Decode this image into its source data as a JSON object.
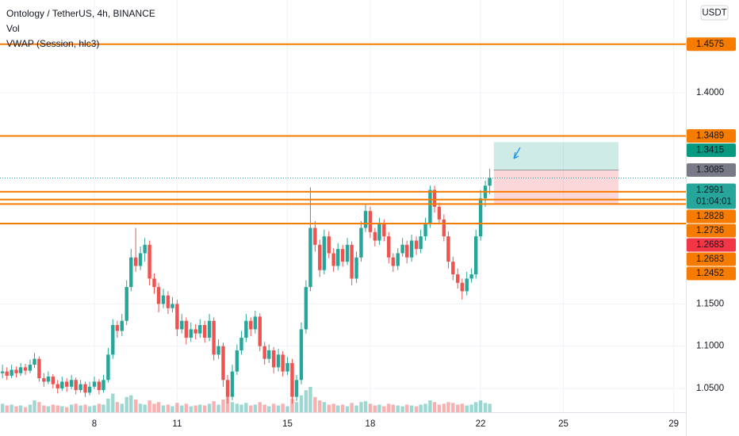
{
  "chart_data": {
    "type": "candlestick",
    "title": "Ontology / TetherUS, 4h, BINANCE",
    "indicators": [
      "Vol",
      "VWAP (Session, hlc3)"
    ],
    "currency": "USDT",
    "up_color": "#26a69a",
    "down_color": "#ef5350",
    "grid": true,
    "xlim": [
      4.58,
      29.44
    ],
    "xticks": [
      8,
      11,
      15,
      18,
      22,
      25,
      29
    ],
    "ylim": [
      1.0218,
      1.5098
    ],
    "yticks": [
      {
        "value": 1.05,
        "label": "1.0500"
      },
      {
        "value": 1.1,
        "label": "1.1000"
      },
      {
        "value": 1.15,
        "label": "1.1500"
      },
      {
        "value": 1.4,
        "label": "1.4000"
      }
    ],
    "x": [
      4.67,
      4.83,
      5,
      5.17,
      5.33,
      5.5,
      5.67,
      5.83,
      6,
      6.17,
      6.33,
      6.5,
      6.67,
      6.83,
      7,
      7.17,
      7.33,
      7.5,
      7.67,
      7.83,
      8,
      8.17,
      8.33,
      8.5,
      8.67,
      8.83,
      9,
      9.17,
      9.33,
      9.5,
      9.67,
      9.83,
      10,
      10.17,
      10.33,
      10.5,
      10.67,
      10.83,
      11,
      11.17,
      11.33,
      11.5,
      11.67,
      11.83,
      12,
      12.17,
      12.33,
      12.5,
      12.67,
      12.83,
      13,
      13.17,
      13.33,
      13.5,
      13.67,
      13.83,
      14,
      14.17,
      14.33,
      14.5,
      14.67,
      14.83,
      15,
      15.17,
      15.33,
      15.5,
      15.67,
      15.83,
      16,
      16.17,
      16.33,
      16.5,
      16.67,
      16.83,
      17,
      17.17,
      17.33,
      17.5,
      17.67,
      17.83,
      18,
      18.17,
      18.33,
      18.5,
      18.67,
      18.83,
      19,
      19.17,
      19.33,
      19.5,
      19.67,
      19.83,
      20,
      20.17,
      20.33,
      20.5,
      20.67,
      20.83,
      21,
      21.17,
      21.33,
      21.5,
      21.67,
      21.83,
      22,
      22.17,
      22.33
    ],
    "ohlc": [
      [
        1.068,
        1.078,
        1.062,
        1.07
      ],
      [
        1.07,
        1.075,
        1.06,
        1.065
      ],
      [
        1.065,
        1.078,
        1.062,
        1.072
      ],
      [
        1.072,
        1.076,
        1.063,
        1.068
      ],
      [
        1.068,
        1.08,
        1.065,
        1.075
      ],
      [
        1.075,
        1.079,
        1.066,
        1.071
      ],
      [
        1.071,
        1.084,
        1.068,
        1.078
      ],
      [
        1.078,
        1.092,
        1.074,
        1.085
      ],
      [
        1.085,
        1.088,
        1.058,
        1.062
      ],
      [
        1.062,
        1.068,
        1.052,
        1.058
      ],
      [
        1.058,
        1.07,
        1.055,
        1.064
      ],
      [
        1.064,
        1.067,
        1.05,
        1.055
      ],
      [
        1.055,
        1.06,
        1.044,
        1.05
      ],
      [
        1.05,
        1.064,
        1.047,
        1.058
      ],
      [
        1.058,
        1.062,
        1.046,
        1.052
      ],
      [
        1.052,
        1.066,
        1.049,
        1.06
      ],
      [
        1.06,
        1.063,
        1.043,
        1.048
      ],
      [
        1.048,
        1.06,
        1.045,
        1.055
      ],
      [
        1.055,
        1.058,
        1.04,
        1.045
      ],
      [
        1.045,
        1.058,
        1.042,
        1.052
      ],
      [
        1.052,
        1.064,
        1.049,
        1.058
      ],
      [
        1.058,
        1.061,
        1.043,
        1.048
      ],
      [
        1.048,
        1.066,
        1.045,
        1.06
      ],
      [
        1.06,
        1.098,
        1.057,
        1.09
      ],
      [
        1.09,
        1.132,
        1.085,
        1.125
      ],
      [
        1.125,
        1.13,
        1.11,
        1.118
      ],
      [
        1.118,
        1.138,
        1.112,
        1.13
      ],
      [
        1.13,
        1.178,
        1.125,
        1.17
      ],
      [
        1.17,
        1.215,
        1.165,
        1.205
      ],
      [
        1.205,
        1.24,
        1.188,
        1.195
      ],
      [
        1.195,
        1.218,
        1.19,
        1.21
      ],
      [
        1.21,
        1.228,
        1.2,
        1.22
      ],
      [
        1.22,
        1.225,
        1.172,
        1.18
      ],
      [
        1.18,
        1.186,
        1.162,
        1.17
      ],
      [
        1.17,
        1.175,
        1.14,
        1.15
      ],
      [
        1.15,
        1.168,
        1.145,
        1.16
      ],
      [
        1.16,
        1.165,
        1.138,
        1.145
      ],
      [
        1.145,
        1.158,
        1.14,
        1.15
      ],
      [
        1.15,
        1.155,
        1.112,
        1.12
      ],
      [
        1.12,
        1.138,
        1.115,
        1.13
      ],
      [
        1.13,
        1.134,
        1.102,
        1.11
      ],
      [
        1.11,
        1.128,
        1.105,
        1.12
      ],
      [
        1.12,
        1.126,
        1.108,
        1.115
      ],
      [
        1.115,
        1.132,
        1.11,
        1.125
      ],
      [
        1.125,
        1.13,
        1.104,
        1.11
      ],
      [
        1.11,
        1.138,
        1.106,
        1.13
      ],
      [
        1.13,
        1.134,
        1.083,
        1.09
      ],
      [
        1.09,
        1.108,
        1.085,
        1.1
      ],
      [
        1.1,
        1.104,
        1.052,
        1.06
      ],
      [
        1.06,
        1.066,
        1.032,
        1.04
      ],
      [
        1.04,
        1.078,
        1.036,
        1.07
      ],
      [
        1.07,
        1.102,
        1.066,
        1.095
      ],
      [
        1.095,
        1.118,
        1.09,
        1.11
      ],
      [
        1.11,
        1.138,
        1.105,
        1.13
      ],
      [
        1.13,
        1.134,
        1.112,
        1.12
      ],
      [
        1.12,
        1.142,
        1.115,
        1.135
      ],
      [
        1.135,
        1.139,
        1.094,
        1.1
      ],
      [
        1.1,
        1.105,
        1.078,
        1.085
      ],
      [
        1.085,
        1.102,
        1.08,
        1.095
      ],
      [
        1.095,
        1.099,
        1.068,
        1.075
      ],
      [
        1.075,
        1.097,
        1.07,
        1.09
      ],
      [
        1.09,
        1.094,
        1.064,
        1.07
      ],
      [
        1.07,
        1.087,
        1.066,
        1.08
      ],
      [
        1.08,
        1.085,
        1.032,
        1.04
      ],
      [
        1.04,
        1.066,
        1.035,
        1.06
      ],
      [
        1.06,
        1.128,
        1.055,
        1.12
      ],
      [
        1.12,
        1.178,
        1.115,
        1.17
      ],
      [
        1.17,
        1.288,
        1.165,
        1.24
      ],
      [
        1.24,
        1.248,
        1.212,
        1.22
      ],
      [
        1.22,
        1.226,
        1.182,
        1.19
      ],
      [
        1.19,
        1.238,
        1.185,
        1.23
      ],
      [
        1.23,
        1.236,
        1.204,
        1.21
      ],
      [
        1.21,
        1.216,
        1.188,
        1.195
      ],
      [
        1.195,
        1.222,
        1.19,
        1.215
      ],
      [
        1.215,
        1.22,
        1.194,
        1.2
      ],
      [
        1.2,
        1.228,
        1.196,
        1.22
      ],
      [
        1.22,
        1.224,
        1.172,
        1.18
      ],
      [
        1.18,
        1.212,
        1.175,
        1.205
      ],
      [
        1.205,
        1.248,
        1.2,
        1.24
      ],
      [
        1.24,
        1.268,
        1.235,
        1.26
      ],
      [
        1.26,
        1.265,
        1.228,
        1.235
      ],
      [
        1.235,
        1.24,
        1.218,
        1.225
      ],
      [
        1.225,
        1.252,
        1.22,
        1.245
      ],
      [
        1.245,
        1.25,
        1.224,
        1.23
      ],
      [
        1.23,
        1.235,
        1.198,
        1.205
      ],
      [
        1.205,
        1.21,
        1.188,
        1.195
      ],
      [
        1.195,
        1.216,
        1.19,
        1.21
      ],
      [
        1.21,
        1.228,
        1.206,
        1.22
      ],
      [
        1.22,
        1.225,
        1.198,
        1.205
      ],
      [
        1.205,
        1.232,
        1.2,
        1.225
      ],
      [
        1.225,
        1.23,
        1.208,
        1.215
      ],
      [
        1.215,
        1.238,
        1.21,
        1.23
      ],
      [
        1.23,
        1.252,
        1.225,
        1.245
      ],
      [
        1.245,
        1.29,
        1.24,
        1.285
      ],
      [
        1.285,
        1.29,
        1.258,
        1.265
      ],
      [
        1.265,
        1.27,
        1.244,
        1.25
      ],
      [
        1.25,
        1.256,
        1.224,
        1.23
      ],
      [
        1.23,
        1.236,
        1.192,
        1.2
      ],
      [
        1.2,
        1.206,
        1.178,
        1.185
      ],
      [
        1.185,
        1.192,
        1.168,
        1.175
      ],
      [
        1.175,
        1.18,
        1.155,
        1.165
      ],
      [
        1.165,
        1.188,
        1.16,
        1.18
      ],
      [
        1.18,
        1.192,
        1.175,
        1.185
      ],
      [
        1.185,
        1.238,
        1.18,
        1.23
      ],
      [
        1.23,
        1.285,
        1.225,
        1.275
      ],
      [
        1.275,
        1.296,
        1.265,
        1.29
      ],
      [
        1.29,
        1.31,
        1.28,
        1.2991
      ]
    ],
    "volume": [
      10,
      8,
      9,
      7,
      8,
      6,
      9,
      14,
      12,
      8,
      7,
      9,
      8,
      7,
      6,
      9,
      10,
      8,
      9,
      7,
      8,
      10,
      9,
      16,
      22,
      12,
      10,
      18,
      20,
      15,
      10,
      9,
      14,
      10,
      12,
      8,
      9,
      7,
      11,
      8,
      10,
      7,
      8,
      9,
      8,
      10,
      13,
      9,
      15,
      18,
      12,
      10,
      9,
      11,
      8,
      9,
      12,
      9,
      7,
      10,
      8,
      10,
      7,
      16,
      12,
      20,
      26,
      30,
      18,
      14,
      12,
      9,
      10,
      8,
      9,
      7,
      11,
      8,
      12,
      13,
      10,
      8,
      9,
      7,
      10,
      9,
      8,
      7,
      9,
      8,
      7,
      9,
      10,
      14,
      12,
      9,
      10,
      12,
      11,
      9,
      10,
      8,
      9,
      12,
      14,
      11,
      10
    ],
    "hlines": {
      "color": "#f57c00",
      "values": [
        1.4575,
        1.3489,
        1.2828,
        1.2736,
        1.2683,
        1.2452
      ]
    },
    "position": {
      "x": [
        22.48,
        27.0
      ],
      "target": 1.3415,
      "entry": 1.3085,
      "stop": 1.2683
    },
    "price_labels": [
      {
        "value": 1.4575,
        "color": "#f57c00"
      },
      {
        "value": 1.3489,
        "color": "#f57c00"
      },
      {
        "value": 1.3415,
        "color": "#089981"
      },
      {
        "value": 1.3085,
        "color": "#787b86"
      },
      {
        "value": 1.2991,
        "color": "#26a69a",
        "sub": "01:04:01"
      },
      {
        "value": 1.2828,
        "color": "#f57c00"
      },
      {
        "value": 1.2736,
        "color": "#f57c00"
      },
      {
        "value": 1.2683,
        "color": "#f23645"
      },
      {
        "value": 1.2683,
        "color": "#f57c00"
      },
      {
        "value": 1.2452,
        "color": "#f57c00"
      }
    ]
  }
}
